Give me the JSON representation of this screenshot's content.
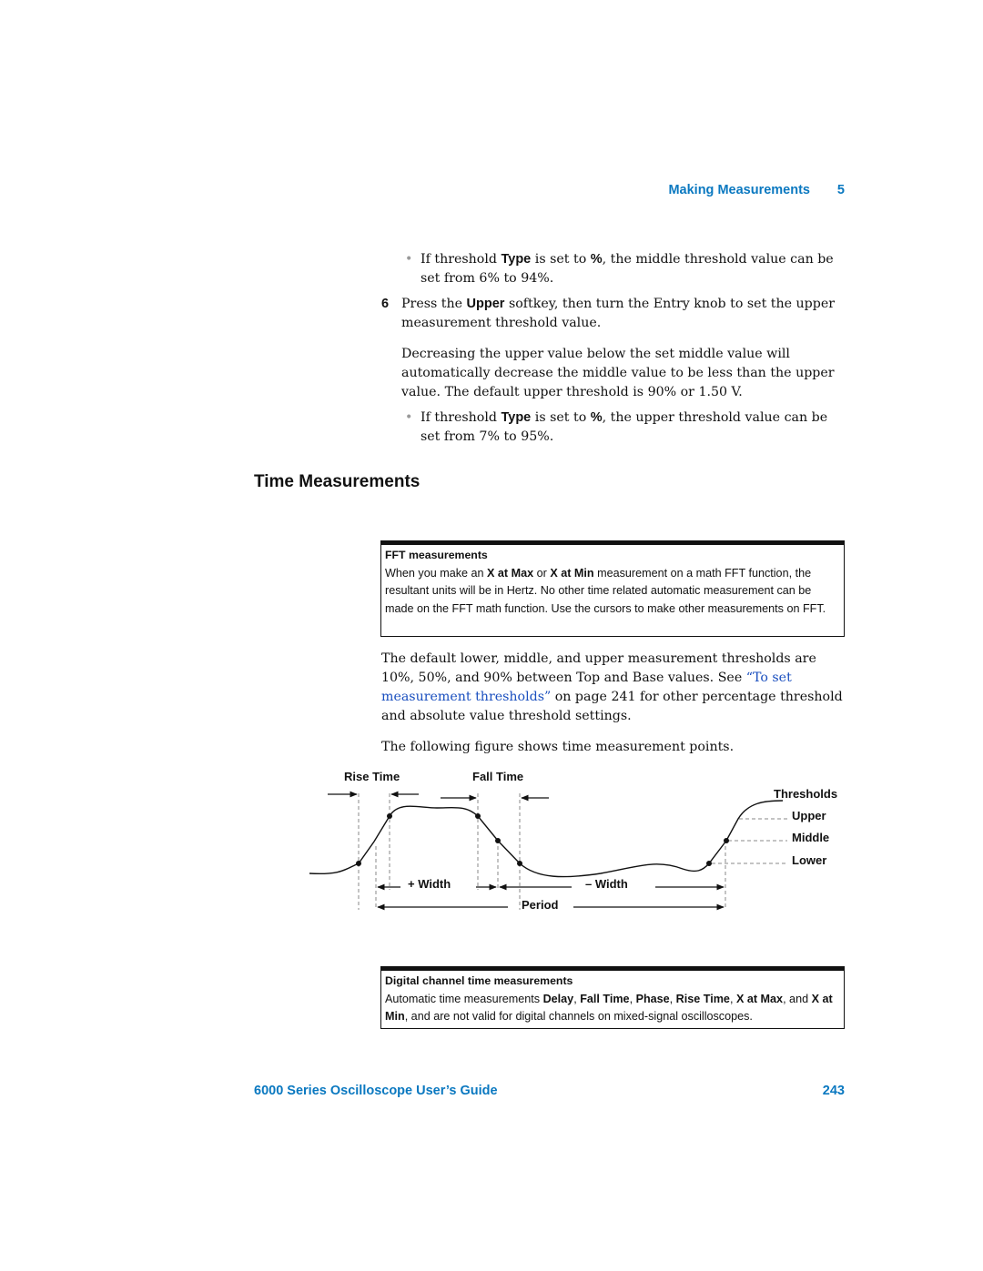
{
  "header": {
    "section": "Making Measurements",
    "chapter": "5"
  },
  "items": [
    {
      "runs": [
        {
          "text": "If threshold "
        },
        {
          "text": "Type",
          "style": "bold"
        },
        {
          "text": " is set to "
        },
        {
          "text": "%",
          "style": "bold"
        },
        {
          "text": ", the middle threshold value can be set from 6% to 94%."
        }
      ]
    },
    {
      "number": "6",
      "runs": [
        {
          "text": "Press the "
        },
        {
          "text": "Upper",
          "style": "bold"
        },
        {
          "text": " softkey, then turn the Entry knob to set the upper measurement threshold value."
        }
      ]
    },
    {
      "runs": [
        {
          "text": "Decreasing the upper value below the set middle value will automatically decrease the middle value to be less than the upper value. The default upper threshold is 90% or 1.50 V."
        }
      ]
    },
    {
      "runs": [
        {
          "text": "If threshold "
        },
        {
          "text": "Type",
          "style": "bold"
        },
        {
          "text": " is set to "
        },
        {
          "text": "%",
          "style": "bold"
        },
        {
          "text": ", the upper threshold value can be set from 7% to 95%."
        }
      ]
    },
    {
      "heading": "Time Measurements"
    },
    {
      "title": "FFT measurements",
      "runs": [
        {
          "text": "When you make an "
        },
        {
          "text": "X at Max",
          "style": "bold"
        },
        {
          "text": " or "
        },
        {
          "text": "X at Min",
          "style": "bold"
        },
        {
          "text": " measurement on a math FFT function, the resultant units will be in Hertz. No other time related automatic measurement can be made on the FFT math function. Use the cursors to make other measurements on FFT."
        }
      ]
    },
    {
      "runs": [
        {
          "text": "The default lower, middle, and upper measurement thresholds are 10%, 50%, and 90% between Top and Base values. See "
        },
        {
          "text": "“To set measurement thresholds”",
          "style": "link"
        },
        {
          "text": " on page 241 for other percentage threshold and absolute value threshold settings."
        }
      ]
    },
    {
      "runs": [
        {
          "text": "The following figure shows time measurement points."
        }
      ]
    },
    {
      "figure": {
        "rise_time": "Rise Time",
        "fall_time": "Fall Time",
        "thresholds": "Thresholds",
        "upper": "Upper",
        "middle": "Middle",
        "lower": "Lower",
        "plus_width": "+ Width",
        "minus_width": "– Width",
        "period": "Period"
      }
    },
    {
      "title": "Digital channel time measurements",
      "runs": [
        {
          "text": "Automatic time measurements "
        },
        {
          "text": "Delay",
          "style": "bold"
        },
        {
          "text": ", "
        },
        {
          "text": "Fall Time",
          "style": "bold"
        },
        {
          "text": ", "
        },
        {
          "text": "Phase",
          "style": "bold"
        },
        {
          "text": ", "
        },
        {
          "text": "Rise Time",
          "style": "bold"
        },
        {
          "text": ", "
        },
        {
          "text": "X at Max",
          "style": "bold"
        },
        {
          "text": ", and "
        },
        {
          "text": "X at Min",
          "style": "bold"
        },
        {
          "text": ", and are not valid for digital channels on mixed-signal oscilloscopes."
        }
      ]
    }
  ],
  "footer": {
    "guide": "6000 Series Oscilloscope User’s Guide",
    "page": "243"
  }
}
